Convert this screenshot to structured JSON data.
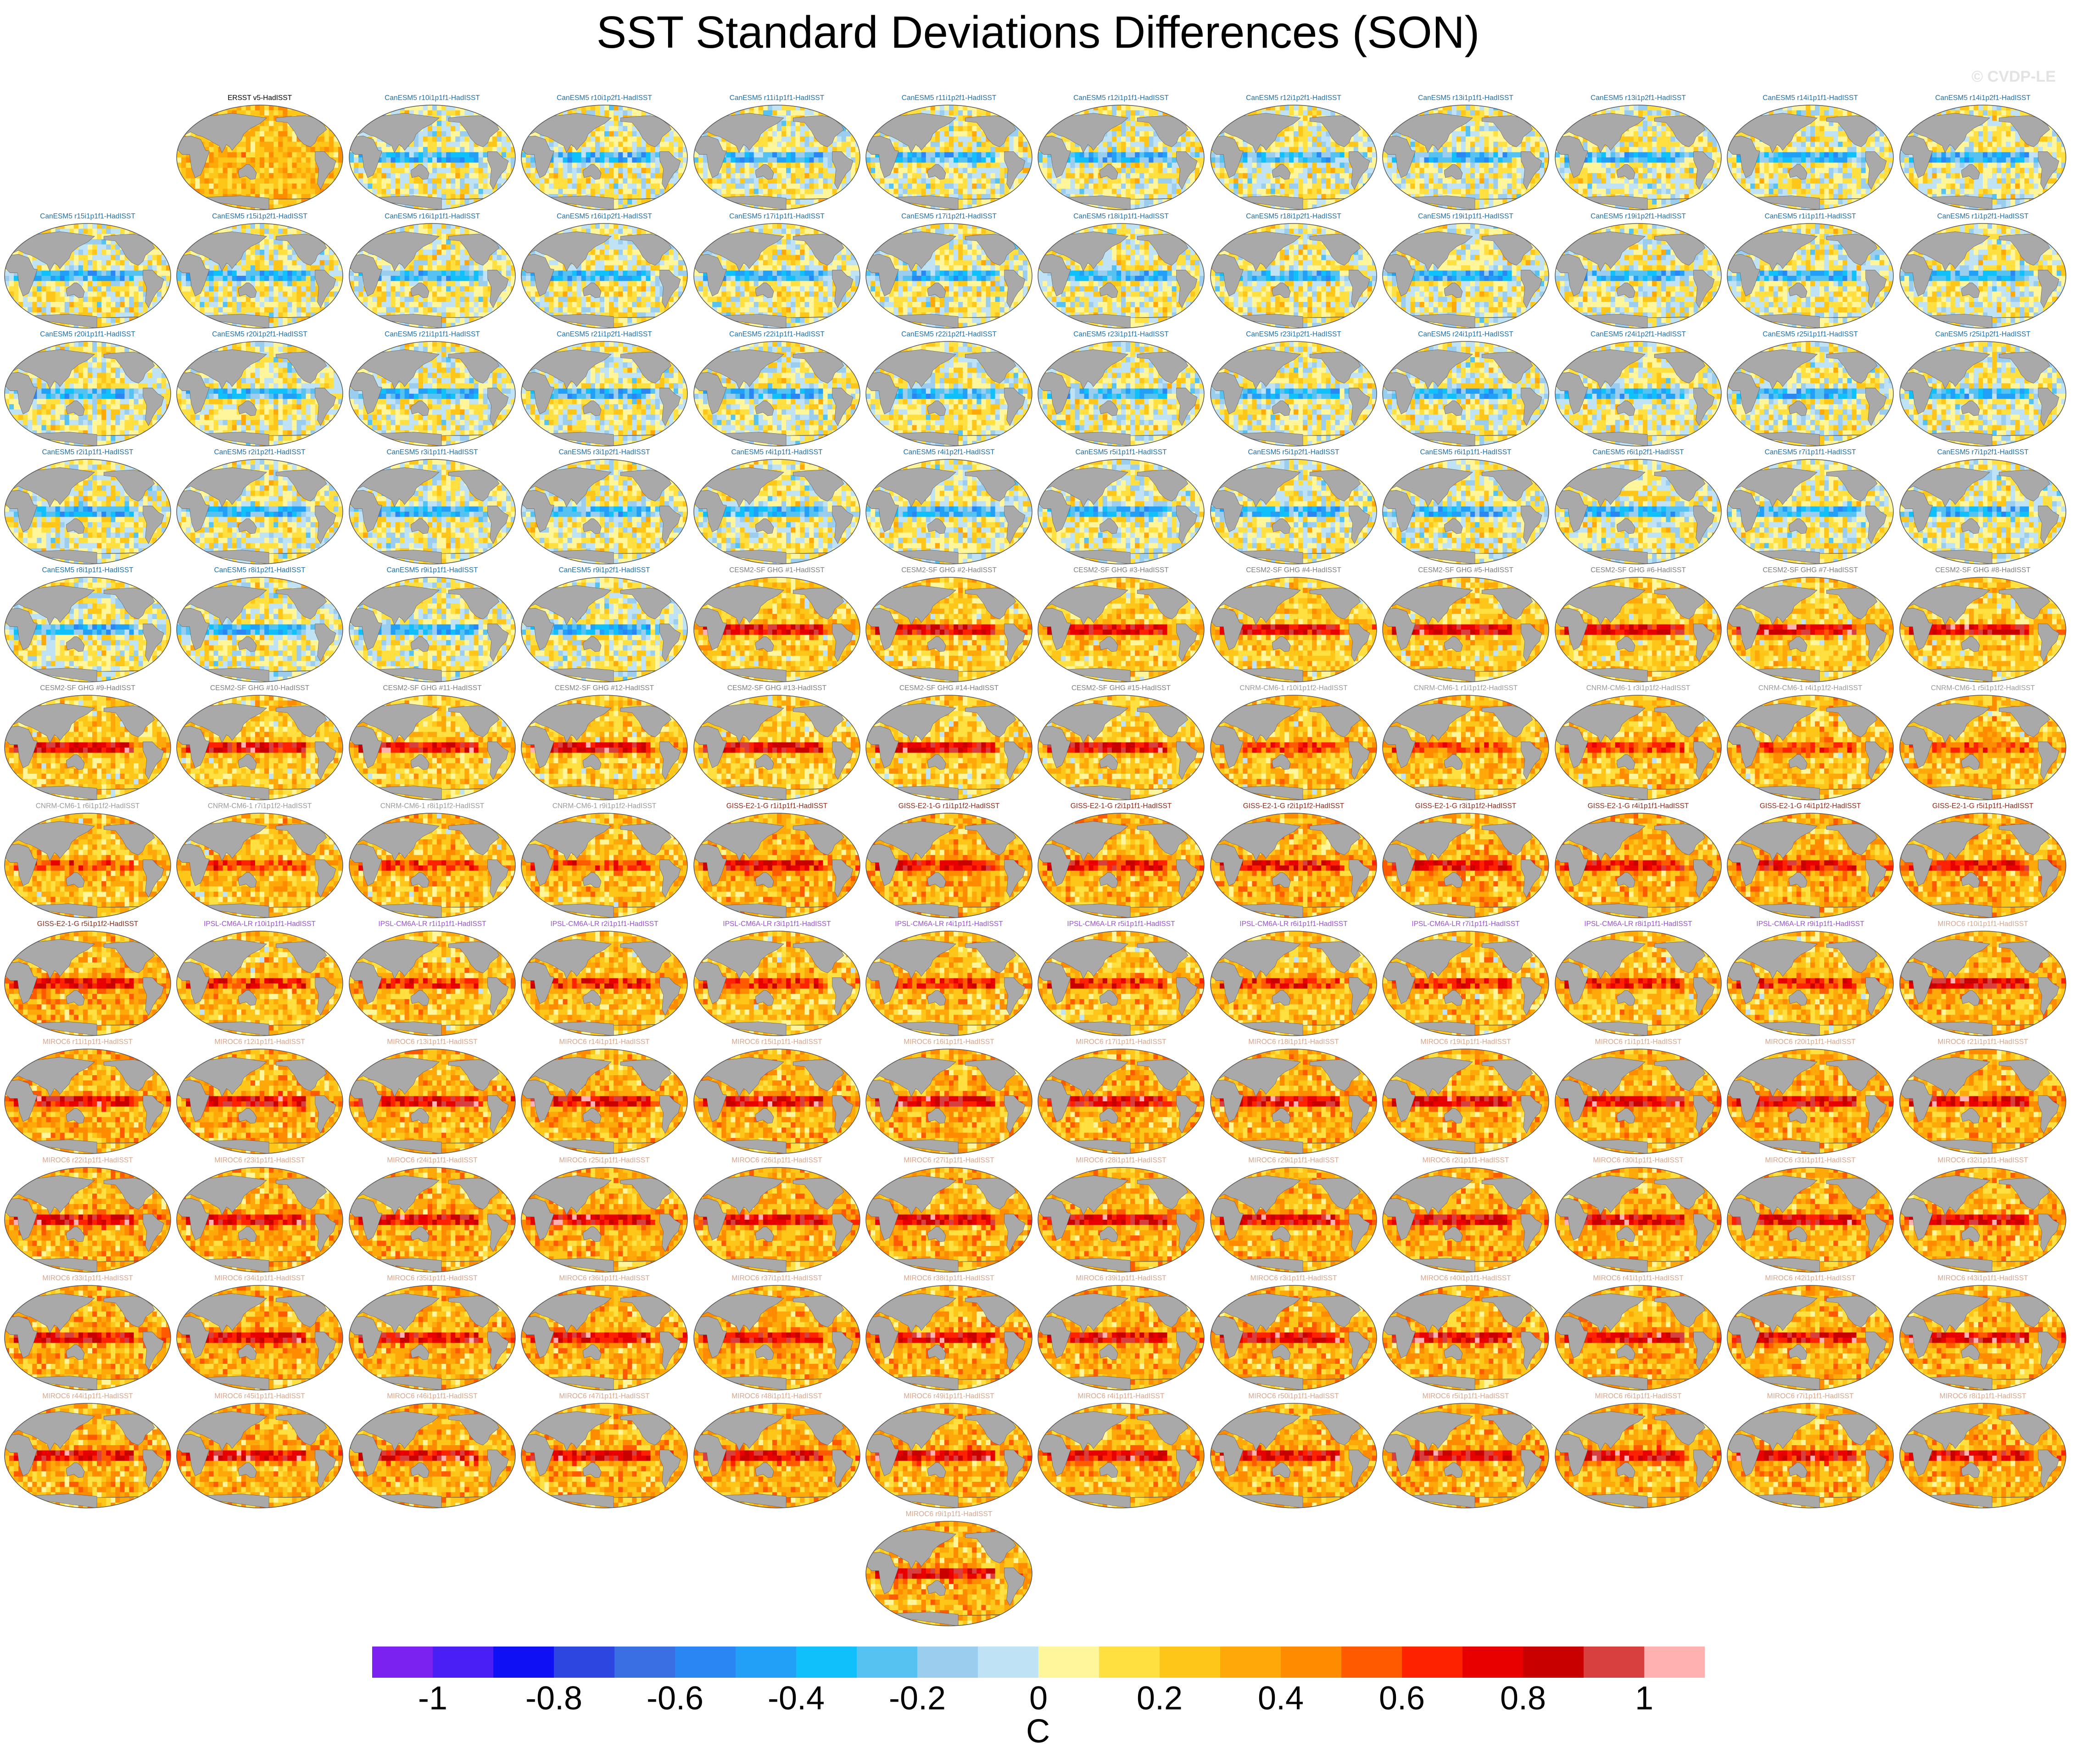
{
  "title": "SST Standard Deviations Differences (SON)",
  "watermark": "© CVDP-LE",
  "chart_data": {
    "type": "heatmap",
    "description_of_panels": "Grid of global SST standard deviation difference maps, one per ensemble member",
    "panels": [
      {
        "title": "ERSST v5-HadISST",
        "group": "obs"
      },
      {
        "title": "CanESM5 r10i1p1f1-HadISST",
        "group": "CanESM5"
      },
      {
        "title": "CanESM5 r10i1p2f1-HadISST",
        "group": "CanESM5"
      },
      {
        "title": "CanESM5 r11i1p1f1-HadISST",
        "group": "CanESM5"
      },
      {
        "title": "CanESM5 r11i1p2f1-HadISST",
        "group": "CanESM5"
      },
      {
        "title": "CanESM5 r12i1p1f1-HadISST",
        "group": "CanESM5"
      },
      {
        "title": "CanESM5 r12i1p2f1-HadISST",
        "group": "CanESM5"
      },
      {
        "title": "CanESM5 r13i1p1f1-HadISST",
        "group": "CanESM5"
      },
      {
        "title": "CanESM5 r13i1p2f1-HadISST",
        "group": "CanESM5"
      },
      {
        "title": "CanESM5 r14i1p1f1-HadISST",
        "group": "CanESM5"
      },
      {
        "title": "CanESM5 r14i1p2f1-HadISST",
        "group": "CanESM5"
      },
      {
        "title": "CanESM5 r15i1p1f1-HadISST",
        "group": "CanESM5"
      },
      {
        "title": "CanESM5 r15i1p2f1-HadISST",
        "group": "CanESM5"
      },
      {
        "title": "CanESM5 r16i1p1f1-HadISST",
        "group": "CanESM5"
      },
      {
        "title": "CanESM5 r16i1p2f1-HadISST",
        "group": "CanESM5"
      },
      {
        "title": "CanESM5 r17i1p1f1-HadISST",
        "group": "CanESM5"
      },
      {
        "title": "CanESM5 r17i1p2f1-HadISST",
        "group": "CanESM5"
      },
      {
        "title": "CanESM5 r18i1p1f1-HadISST",
        "group": "CanESM5"
      },
      {
        "title": "CanESM5 r18i1p2f1-HadISST",
        "group": "CanESM5"
      },
      {
        "title": "CanESM5 r19i1p1f1-HadISST",
        "group": "CanESM5"
      },
      {
        "title": "CanESM5 r19i1p2f1-HadISST",
        "group": "CanESM5"
      },
      {
        "title": "CanESM5 r1i1p1f1-HadISST",
        "group": "CanESM5"
      },
      {
        "title": "CanESM5 r1i1p2f1-HadISST",
        "group": "CanESM5"
      },
      {
        "title": "CanESM5 r20i1p1f1-HadISST",
        "group": "CanESM5"
      },
      {
        "title": "CanESM5 r20i1p2f1-HadISST",
        "group": "CanESM5"
      },
      {
        "title": "CanESM5 r21i1p1f1-HadISST",
        "group": "CanESM5"
      },
      {
        "title": "CanESM5 r21i1p2f1-HadISST",
        "group": "CanESM5"
      },
      {
        "title": "CanESM5 r22i1p1f1-HadISST",
        "group": "CanESM5"
      },
      {
        "title": "CanESM5 r22i1p2f1-HadISST",
        "group": "CanESM5"
      },
      {
        "title": "CanESM5 r23i1p1f1-HadISST",
        "group": "CanESM5"
      },
      {
        "title": "CanESM5 r23i1p2f1-HadISST",
        "group": "CanESM5"
      },
      {
        "title": "CanESM5 r24i1p1f1-HadISST",
        "group": "CanESM5"
      },
      {
        "title": "CanESM5 r24i1p2f1-HadISST",
        "group": "CanESM5"
      },
      {
        "title": "CanESM5 r25i1p1f1-HadISST",
        "group": "CanESM5"
      },
      {
        "title": "CanESM5 r25i1p2f1-HadISST",
        "group": "CanESM5"
      },
      {
        "title": "CanESM5 r2i1p1f1-HadISST",
        "group": "CanESM5"
      },
      {
        "title": "CanESM5 r2i1p2f1-HadISST",
        "group": "CanESM5"
      },
      {
        "title": "CanESM5 r3i1p1f1-HadISST",
        "group": "CanESM5"
      },
      {
        "title": "CanESM5 r3i1p2f1-HadISST",
        "group": "CanESM5"
      },
      {
        "title": "CanESM5 r4i1p1f1-HadISST",
        "group": "CanESM5"
      },
      {
        "title": "CanESM5 r4i1p2f1-HadISST",
        "group": "CanESM5"
      },
      {
        "title": "CanESM5 r5i1p1f1-HadISST",
        "group": "CanESM5"
      },
      {
        "title": "CanESM5 r5i1p2f1-HadISST",
        "group": "CanESM5"
      },
      {
        "title": "CanESM5 r6i1p1f1-HadISST",
        "group": "CanESM5"
      },
      {
        "title": "CanESM5 r6i1p2f1-HadISST",
        "group": "CanESM5"
      },
      {
        "title": "CanESM5 r7i1p1f1-HadISST",
        "group": "CanESM5"
      },
      {
        "title": "CanESM5 r7i1p2f1-HadISST",
        "group": "CanESM5"
      },
      {
        "title": "CanESM5 r8i1p1f1-HadISST",
        "group": "CanESM5"
      },
      {
        "title": "CanESM5 r8i1p2f1-HadISST",
        "group": "CanESM5"
      },
      {
        "title": "CanESM5 r9i1p1f1-HadISST",
        "group": "CanESM5"
      },
      {
        "title": "CanESM5 r9i1p2f1-HadISST",
        "group": "CanESM5"
      },
      {
        "title": "CESM2-SF GHG #1-HadISST",
        "group": "CESM2"
      },
      {
        "title": "CESM2-SF GHG #2-HadISST",
        "group": "CESM2"
      },
      {
        "title": "CESM2-SF GHG #3-HadISST",
        "group": "CESM2"
      },
      {
        "title": "CESM2-SF GHG #4-HadISST",
        "group": "CESM2"
      },
      {
        "title": "CESM2-SF GHG #5-HadISST",
        "group": "CESM2"
      },
      {
        "title": "CESM2-SF GHG #6-HadISST",
        "group": "CESM2"
      },
      {
        "title": "CESM2-SF GHG #7-HadISST",
        "group": "CESM2"
      },
      {
        "title": "CESM2-SF GHG #8-HadISST",
        "group": "CESM2"
      },
      {
        "title": "CESM2-SF GHG #9-HadISST",
        "group": "CESM2"
      },
      {
        "title": "CESM2-SF GHG #10-HadISST",
        "group": "CESM2"
      },
      {
        "title": "CESM2-SF GHG #11-HadISST",
        "group": "CESM2"
      },
      {
        "title": "CESM2-SF GHG #12-HadISST",
        "group": "CESM2"
      },
      {
        "title": "CESM2-SF GHG #13-HadISST",
        "group": "CESM2"
      },
      {
        "title": "CESM2-SF GHG #14-HadISST",
        "group": "CESM2"
      },
      {
        "title": "CESM2-SF GHG #15-HadISST",
        "group": "CESM2"
      },
      {
        "title": "CNRM-CM6-1 r10i1p1f2-HadISST",
        "group": "CNRM"
      },
      {
        "title": "CNRM-CM6-1 r1i1p1f2-HadISST",
        "group": "CNRM"
      },
      {
        "title": "CNRM-CM6-1 r3i1p1f2-HadISST",
        "group": "CNRM"
      },
      {
        "title": "CNRM-CM6-1 r4i1p1f2-HadISST",
        "group": "CNRM"
      },
      {
        "title": "CNRM-CM6-1 r5i1p1f2-HadISST",
        "group": "CNRM"
      },
      {
        "title": "CNRM-CM6-1 r6i1p1f2-HadISST",
        "group": "CNRM"
      },
      {
        "title": "CNRM-CM6-1 r7i1p1f2-HadISST",
        "group": "CNRM"
      },
      {
        "title": "CNRM-CM6-1 r8i1p1f2-HadISST",
        "group": "CNRM"
      },
      {
        "title": "CNRM-CM6-1 r9i1p1f2-HadISST",
        "group": "CNRM"
      },
      {
        "title": "GISS-E2-1-G r1i1p1f1-HadISST",
        "group": "GISS"
      },
      {
        "title": "GISS-E2-1-G r1i1p1f2-HadISST",
        "group": "GISS"
      },
      {
        "title": "GISS-E2-1-G r2i1p1f1-HadISST",
        "group": "GISS"
      },
      {
        "title": "GISS-E2-1-G r2i1p1f2-HadISST",
        "group": "GISS"
      },
      {
        "title": "GISS-E2-1-G r3i1p1f2-HadISST",
        "group": "GISS"
      },
      {
        "title": "GISS-E2-1-G r4i1p1f1-HadISST",
        "group": "GISS"
      },
      {
        "title": "GISS-E2-1-G r4i1p1f2-HadISST",
        "group": "GISS"
      },
      {
        "title": "GISS-E2-1-G r5i1p1f1-HadISST",
        "group": "GISS"
      },
      {
        "title": "GISS-E2-1-G r5i1p1f2-HadISST",
        "group": "GISS"
      },
      {
        "title": "IPSL-CM6A-LR r10i1p1f1-HadISST",
        "group": "IPSL"
      },
      {
        "title": "IPSL-CM6A-LR r1i1p1f1-HadISST",
        "group": "IPSL"
      },
      {
        "title": "IPSL-CM6A-LR r2i1p1f1-HadISST",
        "group": "IPSL"
      },
      {
        "title": "IPSL-CM6A-LR r3i1p1f1-HadISST",
        "group": "IPSL"
      },
      {
        "title": "IPSL-CM6A-LR r4i1p1f1-HadISST",
        "group": "IPSL"
      },
      {
        "title": "IPSL-CM6A-LR r5i1p1f1-HadISST",
        "group": "IPSL"
      },
      {
        "title": "IPSL-CM6A-LR r6i1p1f1-HadISST",
        "group": "IPSL"
      },
      {
        "title": "IPSL-CM6A-LR r7i1p1f1-HadISST",
        "group": "IPSL"
      },
      {
        "title": "IPSL-CM6A-LR r8i1p1f1-HadISST",
        "group": "IPSL"
      },
      {
        "title": "IPSL-CM6A-LR r9i1p1f1-HadISST",
        "group": "IPSL"
      },
      {
        "title": "MIROC6 r10i1p1f1-HadISST",
        "group": "MIROC6"
      },
      {
        "title": "MIROC6 r11i1p1f1-HadISST",
        "group": "MIROC6"
      },
      {
        "title": "MIROC6 r12i1p1f1-HadISST",
        "group": "MIROC6"
      },
      {
        "title": "MIROC6 r13i1p1f1-HadISST",
        "group": "MIROC6"
      },
      {
        "title": "MIROC6 r14i1p1f1-HadISST",
        "group": "MIROC6"
      },
      {
        "title": "MIROC6 r15i1p1f1-HadISST",
        "group": "MIROC6"
      },
      {
        "title": "MIROC6 r16i1p1f1-HadISST",
        "group": "MIROC6"
      },
      {
        "title": "MIROC6 r17i1p1f1-HadISST",
        "group": "MIROC6"
      },
      {
        "title": "MIROC6 r18i1p1f1-HadISST",
        "group": "MIROC6"
      },
      {
        "title": "MIROC6 r19i1p1f1-HadISST",
        "group": "MIROC6"
      },
      {
        "title": "MIROC6 r1i1p1f1-HadISST",
        "group": "MIROC6"
      },
      {
        "title": "MIROC6 r20i1p1f1-HadISST",
        "group": "MIROC6"
      },
      {
        "title": "MIROC6 r21i1p1f1-HadISST",
        "group": "MIROC6"
      },
      {
        "title": "MIROC6 r22i1p1f1-HadISST",
        "group": "MIROC6"
      },
      {
        "title": "MIROC6 r23i1p1f1-HadISST",
        "group": "MIROC6"
      },
      {
        "title": "MIROC6 r24i1p1f1-HadISST",
        "group": "MIROC6"
      },
      {
        "title": "MIROC6 r25i1p1f1-HadISST",
        "group": "MIROC6"
      },
      {
        "title": "MIROC6 r26i1p1f1-HadISST",
        "group": "MIROC6"
      },
      {
        "title": "MIROC6 r27i1p1f1-HadISST",
        "group": "MIROC6"
      },
      {
        "title": "MIROC6 r28i1p1f1-HadISST",
        "group": "MIROC6"
      },
      {
        "title": "MIROC6 r29i1p1f1-HadISST",
        "group": "MIROC6"
      },
      {
        "title": "MIROC6 r2i1p1f1-HadISST",
        "group": "MIROC6"
      },
      {
        "title": "MIROC6 r30i1p1f1-HadISST",
        "group": "MIROC6"
      },
      {
        "title": "MIROC6 r31i1p1f1-HadISST",
        "group": "MIROC6"
      },
      {
        "title": "MIROC6 r32i1p1f1-HadISST",
        "group": "MIROC6"
      },
      {
        "title": "MIROC6 r33i1p1f1-HadISST",
        "group": "MIROC6"
      },
      {
        "title": "MIROC6 r34i1p1f1-HadISST",
        "group": "MIROC6"
      },
      {
        "title": "MIROC6 r35i1p1f1-HadISST",
        "group": "MIROC6"
      },
      {
        "title": "MIROC6 r36i1p1f1-HadISST",
        "group": "MIROC6"
      },
      {
        "title": "MIROC6 r37i1p1f1-HadISST",
        "group": "MIROC6"
      },
      {
        "title": "MIROC6 r38i1p1f1-HadISST",
        "group": "MIROC6"
      },
      {
        "title": "MIROC6 r39i1p1f1-HadISST",
        "group": "MIROC6"
      },
      {
        "title": "MIROC6 r3i1p1f1-HadISST",
        "group": "MIROC6"
      },
      {
        "title": "MIROC6 r40i1p1f1-HadISST",
        "group": "MIROC6"
      },
      {
        "title": "MIROC6 r41i1p1f1-HadISST",
        "group": "MIROC6"
      },
      {
        "title": "MIROC6 r42i1p1f1-HadISST",
        "group": "MIROC6"
      },
      {
        "title": "MIROC6 r43i1p1f1-HadISST",
        "group": "MIROC6"
      },
      {
        "title": "MIROC6 r44i1p1f1-HadISST",
        "group": "MIROC6"
      },
      {
        "title": "MIROC6 r45i1p1f1-HadISST",
        "group": "MIROC6"
      },
      {
        "title": "MIROC6 r46i1p1f1-HadISST",
        "group": "MIROC6"
      },
      {
        "title": "MIROC6 r47i1p1f1-HadISST",
        "group": "MIROC6"
      },
      {
        "title": "MIROC6 r48i1p1f1-HadISST",
        "group": "MIROC6"
      },
      {
        "title": "MIROC6 r49i1p1f1-HadISST",
        "group": "MIROC6"
      },
      {
        "title": "MIROC6 r4i1p1f1-HadISST",
        "group": "MIROC6"
      },
      {
        "title": "MIROC6 r50i1p1f1-HadISST",
        "group": "MIROC6"
      },
      {
        "title": "MIROC6 r5i1p1f1-HadISST",
        "group": "MIROC6"
      },
      {
        "title": "MIROC6 r6i1p1f1-HadISST",
        "group": "MIROC6"
      },
      {
        "title": "MIROC6 r7i1p1f1-HadISST",
        "group": "MIROC6"
      },
      {
        "title": "MIROC6 r8i1p1f1-HadISST",
        "group": "MIROC6"
      },
      {
        "title": "MIROC6 r9i1p1f1-HadISST",
        "group": "MIROC6"
      }
    ],
    "group_colors": {
      "obs": "#000000",
      "CanESM5": "#1f6fa8",
      "CESM2": "#7f7f7f",
      "CNRM": "#9a9a9a",
      "GISS": "#8b2a1a",
      "IPSL": "#9b4fd6",
      "MIROC6": "#d9a58a"
    },
    "group_pattern": {
      "obs": {
        "base": 0.25,
        "enso": 0.1,
        "noise": 0.15
      },
      "CanESM5": {
        "base": 0.05,
        "enso": -0.5,
        "noise": 0.2
      },
      "CESM2": {
        "base": 0.2,
        "enso": 0.85,
        "noise": 0.18
      },
      "CNRM": {
        "base": 0.25,
        "enso": 0.45,
        "noise": 0.2
      },
      "GISS": {
        "base": 0.3,
        "enso": 0.6,
        "noise": 0.2
      },
      "IPSL": {
        "base": 0.25,
        "enso": 0.55,
        "noise": 0.2
      },
      "MIROC6": {
        "base": 0.3,
        "enso": 0.7,
        "noise": 0.2
      }
    },
    "colorbar": {
      "levels": [
        -1.1,
        -1,
        -0.9,
        -0.8,
        -0.7,
        -0.6,
        -0.5,
        -0.4,
        -0.3,
        -0.2,
        -0.1,
        0,
        0.1,
        0.2,
        0.3,
        0.4,
        0.5,
        0.6,
        0.7,
        0.8,
        0.9,
        1,
        1.1
      ],
      "colors": [
        "#7b22f0",
        "#4a1ff5",
        "#1010f5",
        "#2e46e0",
        "#3a6ee3",
        "#2a86f2",
        "#22a0f7",
        "#10c0fa",
        "#55c2f2",
        "#9acdee",
        "#bfe2f5",
        "#fff59a",
        "#ffe040",
        "#ffc61a",
        "#ffa80a",
        "#ff8c00",
        "#ff5a00",
        "#ff2200",
        "#e80000",
        "#c80000",
        "#d84040",
        "#ffb0b0"
      ],
      "tick_labels": [
        "-1",
        "-0.8",
        "-0.6",
        "-0.4",
        "-0.2",
        "0",
        "0.2",
        "0.4",
        "0.6",
        "0.8",
        "1"
      ],
      "tick_values": [
        -1,
        -0.8,
        -0.6,
        -0.4,
        -0.2,
        0,
        0.2,
        0.4,
        0.6,
        0.8,
        1
      ],
      "units": "C"
    }
  }
}
